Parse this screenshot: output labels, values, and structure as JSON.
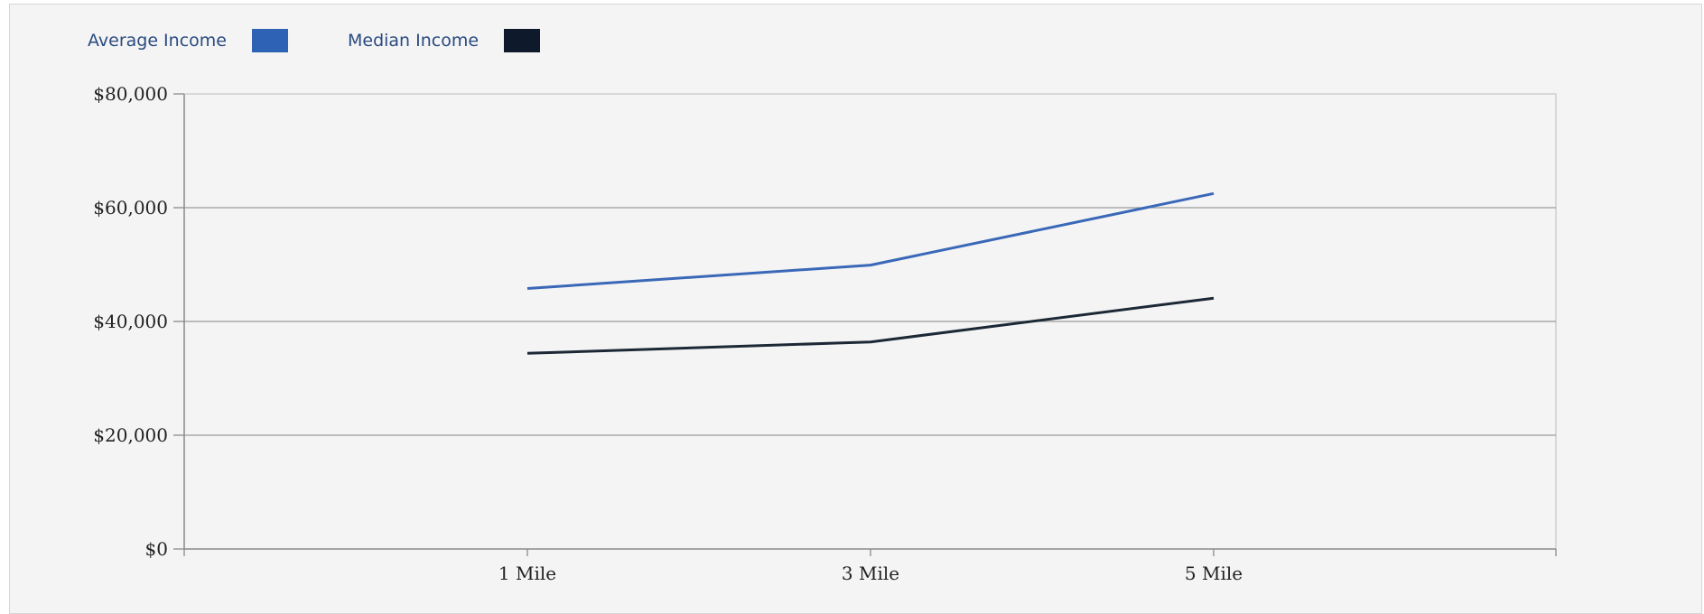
{
  "legend": [
    {
      "label": "Average Income",
      "color": "#2e62b5"
    },
    {
      "label": "Median Income",
      "color": "#0e1a2b"
    }
  ],
  "chart_data": {
    "type": "line",
    "categories": [
      "1 Mile",
      "3 Mile",
      "5 Mile"
    ],
    "series": [
      {
        "name": "Average Income",
        "color": "#3a68b8",
        "values": [
          45800,
          49900,
          62500
        ]
      },
      {
        "name": "Median Income",
        "color": "#1c2836",
        "values": [
          34400,
          36400,
          44100
        ]
      }
    ],
    "yticks": [
      "$0",
      "$20,000",
      "$40,000",
      "$60,000",
      "$80,000"
    ],
    "ylim": [
      0,
      80000
    ],
    "grid": true,
    "legend_position": "top-left"
  }
}
